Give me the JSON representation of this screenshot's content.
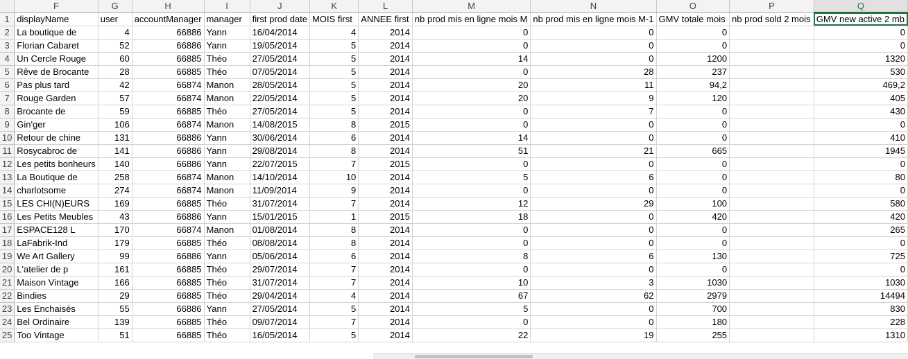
{
  "sheet": {
    "column_letters": [
      "F",
      "G",
      "H",
      "I",
      "J",
      "K",
      "L",
      "M",
      "N",
      "O",
      "P",
      "Q"
    ],
    "active_column": "Q",
    "headers": [
      "displayName",
      "user",
      "accountManager",
      "manager",
      "first prod date",
      "MOIS first",
      "ANNEE first",
      "nb prod mis en ligne mois M",
      "nb prod mis en ligne mois M-1",
      "GMV totale mois",
      "nb prod sold 2 mois",
      "GMV new active 2 mb"
    ],
    "rows": [
      {
        "n": "2",
        "c": [
          "La boutique de",
          "4",
          "66886",
          "Yann",
          "16/04/2014",
          "4",
          "2014",
          "0",
          "0",
          "0",
          "",
          "0"
        ]
      },
      {
        "n": "3",
        "c": [
          "Florian Cabaret",
          "52",
          "66886",
          "Yann",
          "19/05/2014",
          "5",
          "2014",
          "0",
          "0",
          "0",
          "",
          "0"
        ]
      },
      {
        "n": "4",
        "c": [
          "Un Cercle Rouge",
          "60",
          "66885",
          "Théo",
          "27/05/2014",
          "5",
          "2014",
          "14",
          "0",
          "1200",
          "",
          "1320"
        ]
      },
      {
        "n": "5",
        "c": [
          "Rêve de Brocante",
          "28",
          "66885",
          "Théo",
          "07/05/2014",
          "5",
          "2014",
          "0",
          "28",
          "237",
          "",
          "530"
        ]
      },
      {
        "n": "6",
        "c": [
          "Pas plus tard",
          "42",
          "66874",
          "Manon",
          "28/05/2014",
          "5",
          "2014",
          "20",
          "11",
          "94,2",
          "",
          "469,2"
        ]
      },
      {
        "n": "7",
        "c": [
          "Rouge Garden",
          "57",
          "66874",
          "Manon",
          "22/05/2014",
          "5",
          "2014",
          "20",
          "9",
          "120",
          "",
          "405"
        ]
      },
      {
        "n": "8",
        "c": [
          "Brocante de",
          "59",
          "66885",
          "Théo",
          "27/05/2014",
          "5",
          "2014",
          "0",
          "7",
          "0",
          "",
          "430"
        ]
      },
      {
        "n": "9",
        "c": [
          "Gin'ger",
          "106",
          "66874",
          "Manon",
          "14/08/2015",
          "8",
          "2015",
          "0",
          "0",
          "0",
          "",
          "0"
        ]
      },
      {
        "n": "10",
        "c": [
          "Retour de chine",
          "131",
          "66886",
          "Yann",
          "30/06/2014",
          "6",
          "2014",
          "14",
          "0",
          "0",
          "",
          "410"
        ]
      },
      {
        "n": "11",
        "c": [
          "Rosycabroc de",
          "141",
          "66886",
          "Yann",
          "29/08/2014",
          "8",
          "2014",
          "51",
          "21",
          "665",
          "",
          "1945"
        ]
      },
      {
        "n": "12",
        "c": [
          "Les petits bonheurs",
          "140",
          "66886",
          "Yann",
          "22/07/2015",
          "7",
          "2015",
          "0",
          "0",
          "0",
          "",
          "0"
        ]
      },
      {
        "n": "13",
        "c": [
          "La Boutique de",
          "258",
          "66874",
          "Manon",
          "14/10/2014",
          "10",
          "2014",
          "5",
          "6",
          "0",
          "",
          "80"
        ]
      },
      {
        "n": "14",
        "c": [
          "charlotsome",
          "274",
          "66874",
          "Manon",
          "11/09/2014",
          "9",
          "2014",
          "0",
          "0",
          "0",
          "",
          "0"
        ]
      },
      {
        "n": "15",
        "c": [
          "LES CHI(N)EURS",
          "169",
          "66885",
          "Théo",
          "31/07/2014",
          "7",
          "2014",
          "12",
          "29",
          "100",
          "",
          "580"
        ]
      },
      {
        "n": "16",
        "c": [
          "Les Petits Meubles",
          "43",
          "66886",
          "Yann",
          "15/01/2015",
          "1",
          "2015",
          "18",
          "0",
          "420",
          "",
          "420"
        ]
      },
      {
        "n": "17",
        "c": [
          "ESPACE128 L",
          "170",
          "66874",
          "Manon",
          "01/08/2014",
          "8",
          "2014",
          "0",
          "0",
          "0",
          "",
          "265"
        ]
      },
      {
        "n": "18",
        "c": [
          "LaFabrik-Ind",
          "179",
          "66885",
          "Théo",
          "08/08/2014",
          "8",
          "2014",
          "0",
          "0",
          "0",
          "",
          "0"
        ]
      },
      {
        "n": "19",
        "c": [
          "We Art Gallery",
          "99",
          "66886",
          "Yann",
          "05/06/2014",
          "6",
          "2014",
          "8",
          "6",
          "130",
          "",
          "725"
        ]
      },
      {
        "n": "20",
        "c": [
          "L'atelier de p",
          "161",
          "66885",
          "Théo",
          "29/07/2014",
          "7",
          "2014",
          "0",
          "0",
          "0",
          "",
          "0"
        ]
      },
      {
        "n": "21",
        "c": [
          "Maison Vintage",
          "166",
          "66885",
          "Théo",
          "31/07/2014",
          "7",
          "2014",
          "10",
          "3",
          "1030",
          "",
          "1030"
        ]
      },
      {
        "n": "22",
        "c": [
          "Bindies",
          "29",
          "66885",
          "Théo",
          "29/04/2014",
          "4",
          "2014",
          "67",
          "62",
          "2979",
          "",
          "14494"
        ]
      },
      {
        "n": "23",
        "c": [
          "Les Enchaisés",
          "55",
          "66886",
          "Yann",
          "27/05/2014",
          "5",
          "2014",
          "5",
          "0",
          "700",
          "",
          "830"
        ]
      },
      {
        "n": "24",
        "c": [
          "Bel Ordinaire",
          "139",
          "66885",
          "Théo",
          "09/07/2014",
          "7",
          "2014",
          "0",
          "0",
          "180",
          "",
          "228"
        ]
      },
      {
        "n": "25",
        "c": [
          "Too Vintage",
          "51",
          "66885",
          "Théo",
          "16/05/2014",
          "5",
          "2014",
          "22",
          "19",
          "255",
          "",
          "1310"
        ]
      }
    ]
  }
}
